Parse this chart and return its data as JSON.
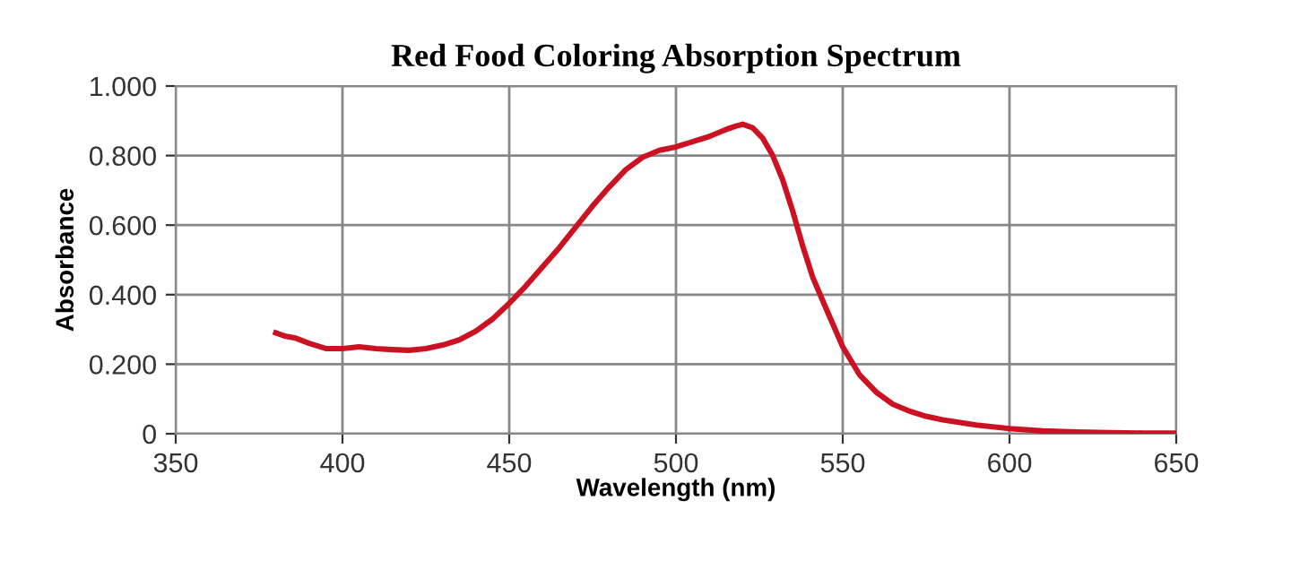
{
  "chart_data": {
    "type": "line",
    "title": "Red Food Coloring Absorption Spectrum",
    "xlabel": "Wavelength (nm)",
    "ylabel": "Absorbance",
    "series": [
      {
        "color": "#cc1122",
        "x": [
          380,
          383,
          386,
          390,
          395,
          400,
          405,
          410,
          415,
          420,
          425,
          430,
          435,
          440,
          445,
          450,
          455,
          460,
          465,
          470,
          475,
          480,
          485,
          490,
          495,
          500,
          505,
          510,
          515,
          518,
          520,
          523,
          526,
          529,
          532,
          535,
          538,
          541,
          545,
          550,
          555,
          560,
          565,
          570,
          575,
          580,
          590,
          600,
          610,
          620,
          630,
          640,
          650
        ],
        "values": [
          0.29,
          0.28,
          0.275,
          0.26,
          0.245,
          0.245,
          0.25,
          0.245,
          0.242,
          0.24,
          0.245,
          0.255,
          0.27,
          0.295,
          0.33,
          0.375,
          0.425,
          0.48,
          0.535,
          0.595,
          0.655,
          0.71,
          0.76,
          0.795,
          0.815,
          0.825,
          0.84,
          0.855,
          0.875,
          0.885,
          0.89,
          0.88,
          0.85,
          0.8,
          0.73,
          0.64,
          0.54,
          0.45,
          0.36,
          0.25,
          0.17,
          0.12,
          0.085,
          0.065,
          0.05,
          0.04,
          0.025,
          0.015,
          0.008,
          0.005,
          0.003,
          0.002,
          0.002
        ]
      }
    ],
    "xlim": [
      350,
      650
    ],
    "ylim": [
      0,
      1
    ],
    "xticks": [
      350,
      400,
      450,
      500,
      550,
      600,
      650
    ],
    "yticks": [
      {
        "value": 0,
        "label": "0"
      },
      {
        "value": 0.2,
        "label": "0.200"
      },
      {
        "value": 0.4,
        "label": "0.400"
      },
      {
        "value": 0.6,
        "label": "0.600"
      },
      {
        "value": 0.8,
        "label": "0.800"
      },
      {
        "value": 1,
        "label": "1.000"
      }
    ],
    "grid": true,
    "marker": "none",
    "line_style": "solid"
  }
}
